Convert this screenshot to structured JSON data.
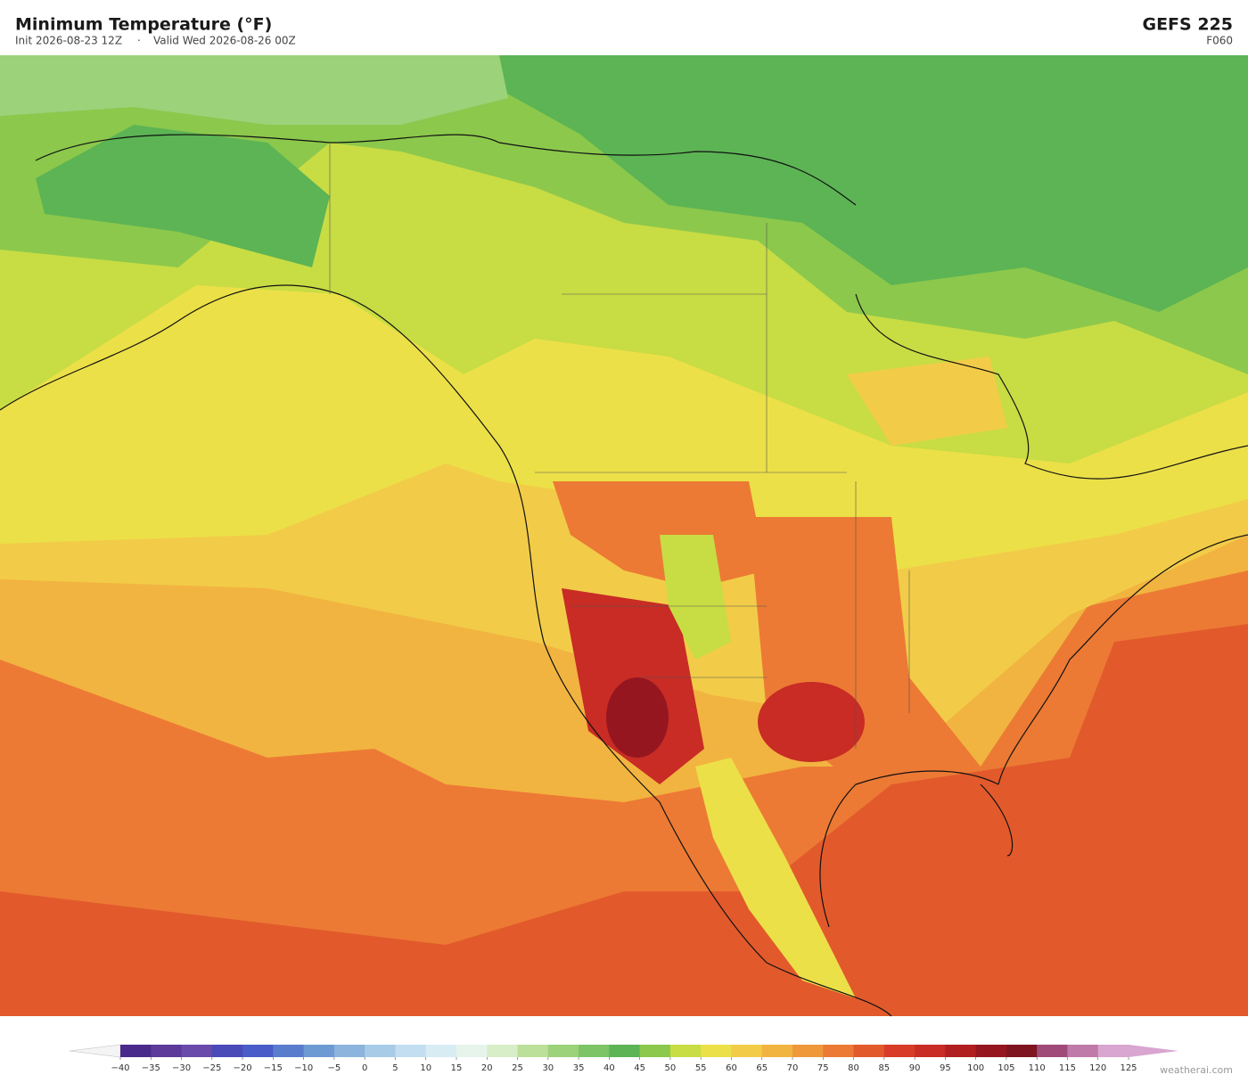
{
  "header": {
    "title": "Minimum Temperature  (°F)",
    "init": "Init 2026-08-23 12Z",
    "valid": "Valid Wed 2026-08-26 00Z",
    "model": "GEFS  225",
    "forecast_hour": "F060"
  },
  "colorbar": {
    "ticks": [
      "−40",
      "−35",
      "−30",
      "−25",
      "−20",
      "−15",
      "−10",
      "−5",
      "0",
      "5",
      "10",
      "15",
      "20",
      "25",
      "30",
      "35",
      "40",
      "45",
      "50",
      "55",
      "60",
      "65",
      "70",
      "75",
      "80",
      "85",
      "90",
      "95",
      "100",
      "105",
      "110",
      "115",
      "120",
      "125"
    ],
    "colors": [
      "#4a2a8a",
      "#5e3a9a",
      "#6a4aaa",
      "#4a4ab8",
      "#4a5cc8",
      "#5a7ccc",
      "#6e9ad4",
      "#8cb4dc",
      "#a8cce8",
      "#c2def0",
      "#d8ecf4",
      "#e6f4ec",
      "#d8eec8",
      "#bce09a",
      "#9cd27a",
      "#7cc466",
      "#5cb454",
      "#8cc84c",
      "#c8dc44",
      "#ece048",
      "#f2cc48",
      "#f2b440",
      "#ee983a",
      "#ec7a34",
      "#e25a2c",
      "#d83c28",
      "#c82c24",
      "#b01e20",
      "#961620",
      "#7e1420",
      "#a04a7a",
      "#c07aaa",
      "#d8a6d0"
    ],
    "under_color": "#f4f4f4",
    "over_color": "#d8a6d0"
  },
  "footer": {
    "watermark": "weatherai.com"
  }
}
